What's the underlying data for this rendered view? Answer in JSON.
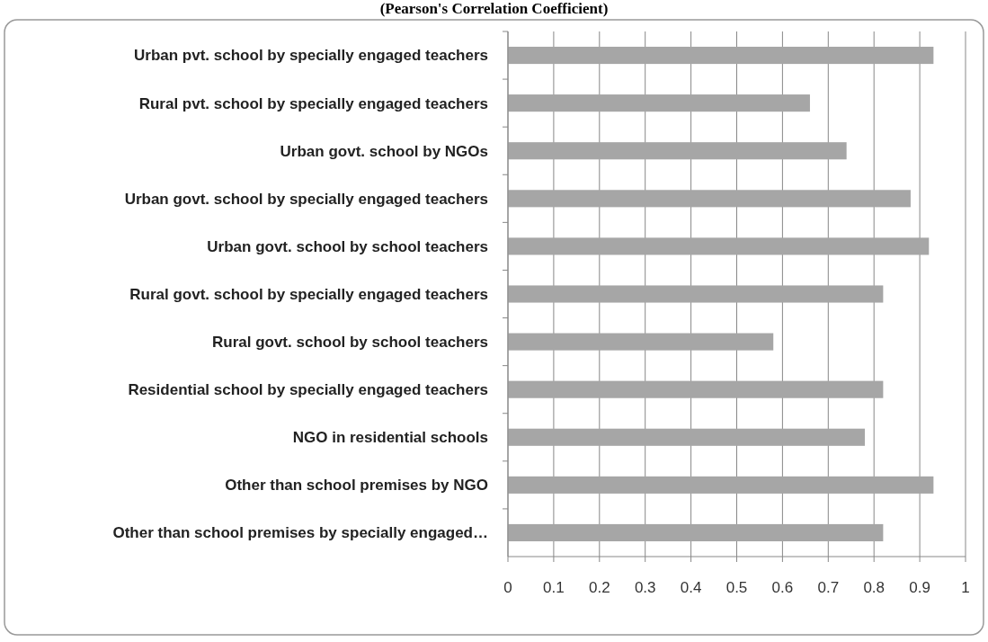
{
  "chart_data": {
    "type": "bar",
    "orientation": "horizontal",
    "title": "(Pearson's Correlation Coefficient)",
    "categories": [
      "Urban pvt. school by specially engaged teachers",
      "Rural pvt. school by specially engaged teachers",
      "Urban govt. school by NGOs",
      "Urban govt. school by specially engaged teachers",
      "Urban govt. school by school teachers",
      "Rural govt. school by specially engaged  teachers",
      "Rural govt. school by school teachers",
      "Residential school by specially engaged teachers",
      "NGO in residential schools",
      "Other than school premises by NGO",
      "Other than school premises by specially engaged…"
    ],
    "values": [
      0.93,
      0.66,
      0.74,
      0.88,
      0.92,
      0.82,
      0.58,
      0.82,
      0.78,
      0.93,
      0.82
    ],
    "color": "#a6a6a6",
    "xlim": [
      0,
      1
    ],
    "xticks": [
      0,
      0.1,
      0.2,
      0.3,
      0.4,
      0.5,
      0.6,
      0.7,
      0.8,
      0.9,
      1
    ],
    "grid": "x"
  }
}
